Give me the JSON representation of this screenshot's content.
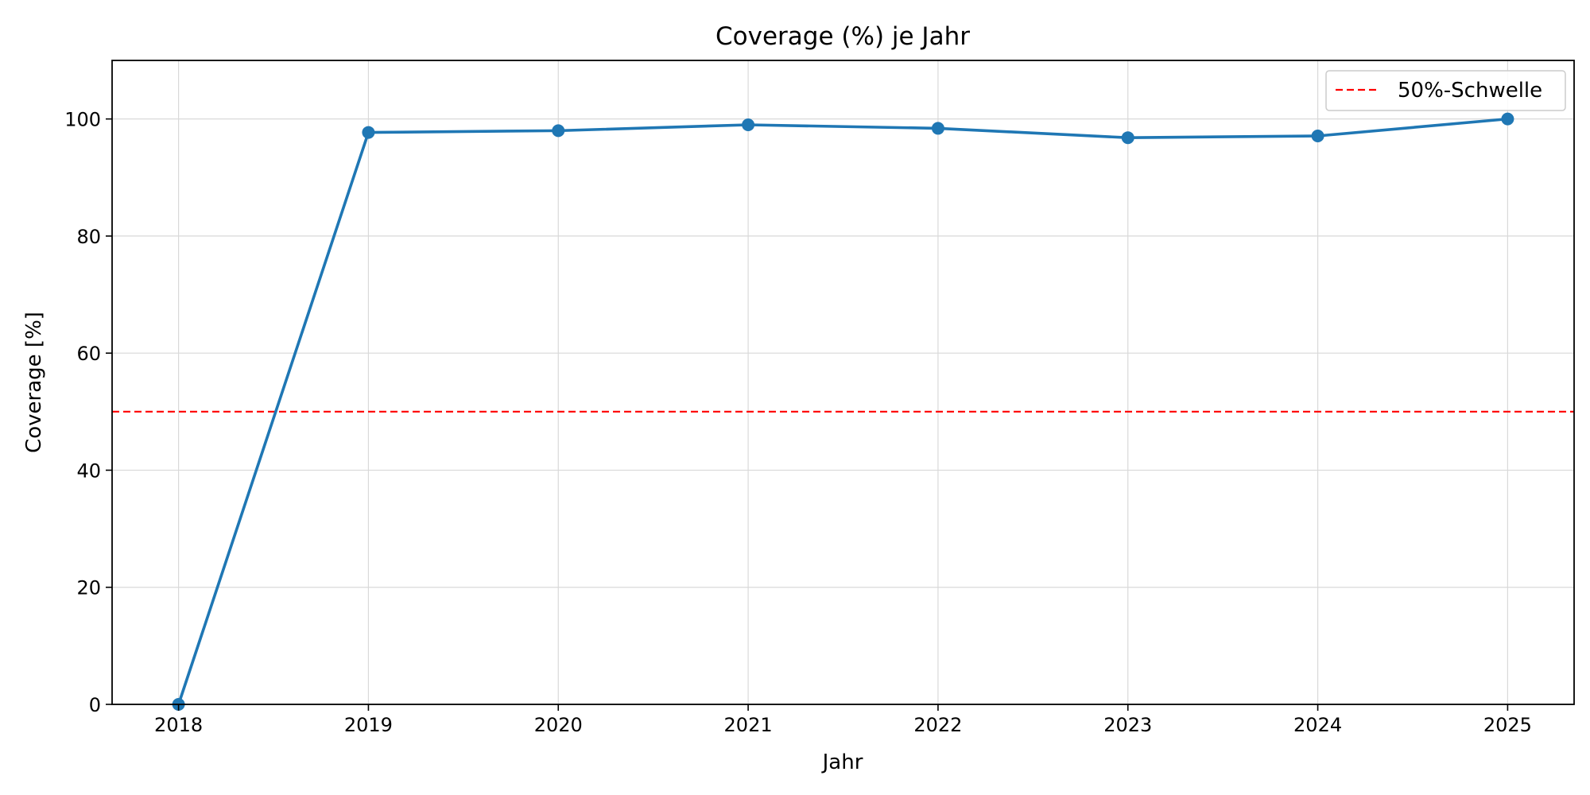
{
  "chart_data": {
    "type": "line",
    "title": "Coverage (%) je Jahr",
    "xlabel": "Jahr",
    "ylabel": "Coverage [%]",
    "x": [
      2018,
      2019,
      2020,
      2021,
      2022,
      2023,
      2024,
      2025
    ],
    "xtick_labels": [
      "2018",
      "2019",
      "2020",
      "2021",
      "2022",
      "2023",
      "2024",
      "2025"
    ],
    "yticks": [
      0,
      20,
      40,
      60,
      80,
      100
    ],
    "ytick_labels": [
      "0",
      "20",
      "40",
      "60",
      "80",
      "100"
    ],
    "xlim": [
      2017.65,
      2025.35
    ],
    "ylim": [
      0,
      110
    ],
    "grid": true,
    "legend_position": "top-right",
    "series": [
      {
        "values": [
          0,
          97.7,
          98.0,
          99.0,
          98.4,
          96.8,
          97.1,
          100.0
        ],
        "color": "#1f77b4",
        "marker": "circle"
      }
    ],
    "reference_lines": [
      {
        "name": "50%-Schwelle",
        "y": 50,
        "color": "#ff0000",
        "style": "dashed"
      }
    ]
  }
}
